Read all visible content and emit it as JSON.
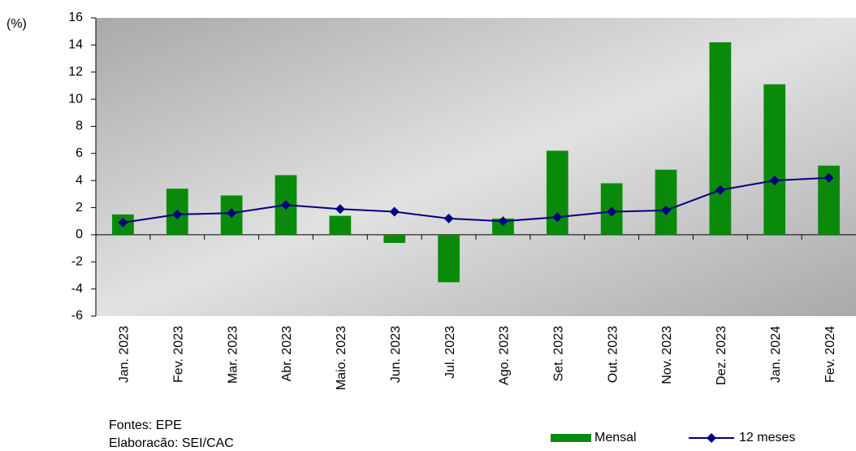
{
  "chart_data": {
    "type": "bar-line",
    "y_label": "(%)",
    "categories": [
      "Jan. 2023",
      "Fev. 2023",
      "Mar. 2023",
      "Abr. 2023",
      "Maio. 2023",
      "Jun. 2023",
      "Jul. 2023",
      "Ago. 2023",
      "Set. 2023",
      "Out. 2023",
      "Nov. 2023",
      "Dez. 2023",
      "Jan. 2024",
      "Fev. 2024"
    ],
    "series": [
      {
        "name": "Mensal",
        "type": "bar",
        "color": "#0a8a0a",
        "values": [
          1.5,
          3.4,
          2.9,
          4.4,
          1.4,
          -0.6,
          -3.5,
          1.2,
          6.2,
          3.8,
          4.8,
          14.2,
          11.1,
          5.1
        ]
      },
      {
        "name": "12 meses",
        "type": "line",
        "color": "#000080",
        "values": [
          0.9,
          1.5,
          1.6,
          2.2,
          1.9,
          1.7,
          1.2,
          1.0,
          1.3,
          1.7,
          1.8,
          3.3,
          4.0,
          4.2
        ]
      }
    ],
    "ylim": [
      -6,
      16
    ],
    "yticks": [
      -6,
      -4,
      -2,
      0,
      2,
      4,
      6,
      8,
      10,
      12,
      14,
      16
    ],
    "notes": [
      "Fontes: EPE",
      "Elaboracão: SEI/CAC"
    ]
  }
}
